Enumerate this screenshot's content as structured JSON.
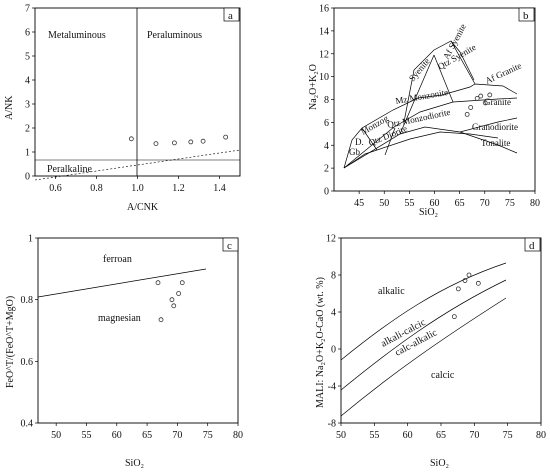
{
  "chart_data": [
    {
      "panel": "a",
      "type": "scatter",
      "xlabel": "A/CNK",
      "ylabel": "A/NK",
      "xlim": [
        0.5,
        1.5
      ],
      "ylim": [
        0,
        7
      ],
      "xticks": [
        "0.6",
        "0.8",
        "1.0",
        "1.2",
        "1.4"
      ],
      "yticks": [
        "0",
        "1",
        "2",
        "3",
        "4",
        "5",
        "6",
        "7"
      ],
      "fields": [
        "Metaluminous",
        "Peraluminous",
        "Peralkaline"
      ],
      "x": [
        0.97,
        1.09,
        1.18,
        1.26,
        1.32,
        1.43
      ],
      "y": [
        1.55,
        1.35,
        1.38,
        1.42,
        1.45,
        1.62
      ]
    },
    {
      "panel": "b",
      "type": "scatter",
      "xlabel": "SiO₂",
      "ylabel": "Na₂O+K₂O",
      "xlim": [
        40,
        80
      ],
      "ylim": [
        0,
        16
      ],
      "xticks": [
        "45",
        "50",
        "55",
        "60",
        "65",
        "70",
        "75",
        "80"
      ],
      "yticks": [
        "0",
        "2",
        "4",
        "6",
        "8",
        "10",
        "12",
        "14",
        "16"
      ],
      "fields": [
        "Gb",
        "D.",
        "Monzog",
        "Qtz Diorite",
        "Qtz Monzodiorite",
        "Mz Monzonite",
        "Syenite",
        "Af Syenite",
        "Qtz Syenite",
        "Af Granite",
        "Granite",
        "Granodiorite",
        "Tonalite"
      ],
      "x": [
        66.5,
        67.2,
        68.5,
        69.2,
        70.1,
        71.0
      ],
      "y": [
        6.7,
        7.3,
        8.1,
        8.3,
        7.7,
        8.4
      ]
    },
    {
      "panel": "c",
      "type": "scatter",
      "xlabel": "SiO₂",
      "ylabel": "FeO^T/(FeO^T+MgO)",
      "xlim": [
        47,
        80
      ],
      "ylim": [
        0.4,
        1.0
      ],
      "xticks": [
        "50",
        "55",
        "60",
        "65",
        "70",
        "75",
        "80"
      ],
      "yticks": [
        "0.4",
        "0.6",
        "0.8",
        "1"
      ],
      "fields": [
        "ferroan",
        "magnesian"
      ],
      "x": [
        66.8,
        67.3,
        69.1,
        69.4,
        70.2,
        70.8
      ],
      "y": [
        0.855,
        0.735,
        0.8,
        0.78,
        0.82,
        0.855
      ]
    },
    {
      "panel": "d",
      "type": "scatter",
      "xlabel": "SiO₂",
      "ylabel": "MALI: Na₂O+K₂O-CaO (wt. %)",
      "xlim": [
        50,
        80
      ],
      "ylim": [
        -8,
        12
      ],
      "xticks": [
        "50",
        "55",
        "60",
        "65",
        "70",
        "75",
        "80"
      ],
      "yticks": [
        "-8",
        "-4",
        "0",
        "4",
        "8",
        "12"
      ],
      "fields": [
        "alkalic",
        "alkali-calcic",
        "calc-alkalic",
        "calcic"
      ],
      "x": [
        67.0,
        67.6,
        68.6,
        69.2,
        70.6
      ],
      "y": [
        3.5,
        6.5,
        7.4,
        8.0,
        7.1
      ]
    }
  ]
}
